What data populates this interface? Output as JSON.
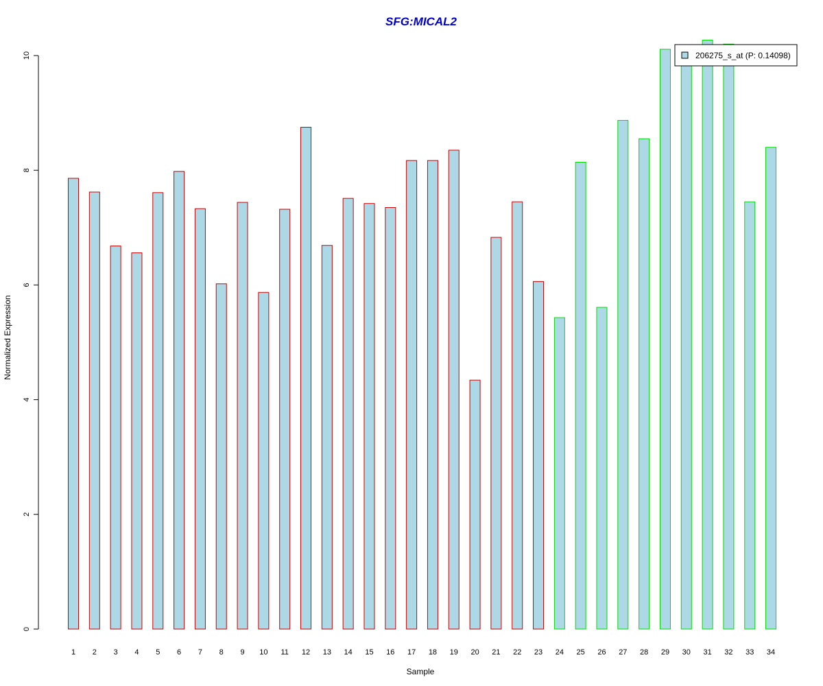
{
  "chart_data": {
    "type": "bar",
    "title": "SFG:MICAL2",
    "xlabel": "Sample",
    "ylabel": "Normalized Expression",
    "categories": [
      "1",
      "2",
      "3",
      "4",
      "5",
      "6",
      "7",
      "8",
      "9",
      "10",
      "11",
      "12",
      "13",
      "14",
      "15",
      "16",
      "17",
      "18",
      "19",
      "20",
      "21",
      "22",
      "23",
      "24",
      "25",
      "26",
      "27",
      "28",
      "29",
      "30",
      "31",
      "32",
      "33",
      "34"
    ],
    "series": [
      {
        "name": "206275_s_at (P: 0.14098)",
        "values": [
          7.86,
          7.62,
          6.68,
          6.56,
          7.61,
          7.98,
          7.33,
          6.02,
          7.44,
          5.87,
          7.32,
          8.75,
          6.69,
          7.51,
          7.42,
          7.35,
          8.17,
          8.17,
          8.35,
          4.34,
          6.83,
          7.45,
          6.06,
          5.43,
          8.14,
          5.61,
          8.87,
          8.55,
          10.11,
          9.9,
          10.27,
          10.2,
          7.45,
          8.4
        ]
      }
    ],
    "group_border_colors": [
      "#cc0000",
      "#cc0000",
      "#cc0000",
      "#cc0000",
      "#cc0000",
      "#cc0000",
      "#cc0000",
      "#cc0000",
      "#cc0000",
      "#cc0000",
      "#cc0000",
      "#cc0000",
      "#cc0000",
      "#cc0000",
      "#cc0000",
      "#cc0000",
      "#cc0000",
      "#cc0000",
      "#cc0000",
      "#cc0000",
      "#cc0000",
      "#cc0000",
      "#cc0000",
      "#00dd00",
      "#00dd00",
      "#00dd00",
      "#00dd00",
      "#00dd00",
      "#00dd00",
      "#00dd00",
      "#00dd00",
      "#00dd00",
      "#00dd00",
      "#00dd00"
    ],
    "yticks": [
      "0",
      "2",
      "4",
      "6",
      "8",
      "10"
    ],
    "ylim": [
      0,
      10.4
    ],
    "bar_fill": "#add8e6",
    "title_color": "#0000cc",
    "legend_placement": "top-right",
    "grid": false
  }
}
